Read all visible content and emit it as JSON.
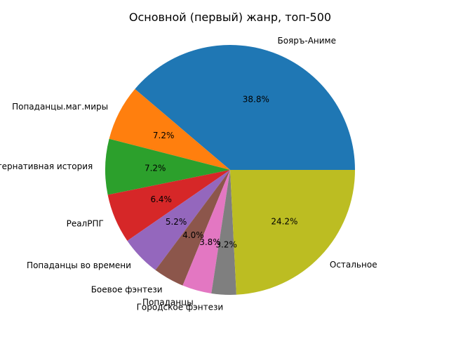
{
  "chart_data": {
    "type": "pie",
    "title": "Основной (первый) жанр, топ-500",
    "start_angle_deg": 0,
    "direction": "counterclockwise",
    "slices": [
      {
        "label": "Бояръ-Аниме",
        "percent": 38.8,
        "pct_label": "38.8%",
        "color": "#1f77b4"
      },
      {
        "label": "Попаданцы.маг.миры",
        "percent": 7.2,
        "pct_label": "7.2%",
        "color": "#ff7f0e"
      },
      {
        "label": "Альтернативная история",
        "percent": 7.2,
        "pct_label": "7.2%",
        "color": "#2ca02c"
      },
      {
        "label": "РеалРПГ",
        "percent": 6.4,
        "pct_label": "6.4%",
        "color": "#d62728"
      },
      {
        "label": "Попаданцы во времени",
        "percent": 5.2,
        "pct_label": "5.2%",
        "color": "#9467bd"
      },
      {
        "label": "Боевое фэнтези",
        "percent": 4.0,
        "pct_label": "4.0%",
        "color": "#8c564b"
      },
      {
        "label": "Попаданцы",
        "percent": 3.8,
        "pct_label": "3.8%",
        "color": "#e377c2"
      },
      {
        "label": "Городское фэнтези",
        "percent": 3.2,
        "pct_label": "3.2%",
        "color": "#7f7f7f"
      },
      {
        "label": "Остальное",
        "percent": 24.2,
        "pct_label": "24.2%",
        "color": "#bcbd22"
      }
    ]
  }
}
